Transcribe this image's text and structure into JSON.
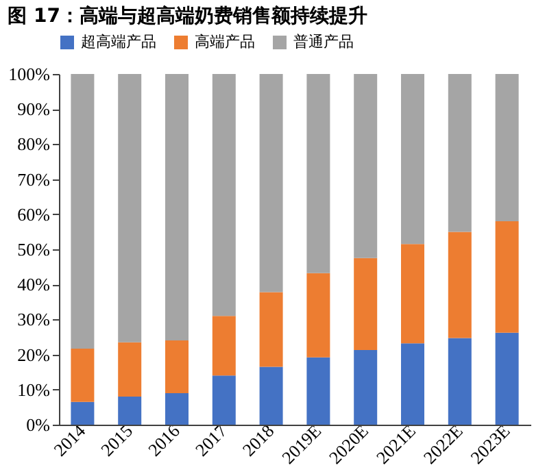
{
  "chart_data": {
    "type": "bar",
    "title": "图 17：高端与超高端奶费销售额持续提升",
    "stacked": true,
    "categories": [
      "2014",
      "2015",
      "2016",
      "2017",
      "2018",
      "2019E",
      "2020E",
      "2021E",
      "2022E",
      "2023E"
    ],
    "series": [
      {
        "name": "超高端产品",
        "color": "#4472c4",
        "values": [
          6.5,
          8,
          9,
          14,
          16.5,
          19.2,
          21.3,
          23.2,
          24.7,
          26.2
        ]
      },
      {
        "name": "高端产品",
        "color": "#ed7d31",
        "values": [
          15.2,
          15.5,
          15,
          17,
          21.3,
          24,
          26.2,
          28.3,
          30.3,
          31.8
        ]
      },
      {
        "name": "普通产品",
        "color": "#a5a5a5",
        "values": [
          78.3,
          76.5,
          76,
          69,
          62.2,
          56.8,
          52.5,
          48.5,
          45,
          42
        ]
      }
    ],
    "ylim": [
      0,
      100
    ],
    "yticks": [
      {
        "value": 0,
        "label": "0%"
      },
      {
        "value": 10,
        "label": "10%"
      },
      {
        "value": 20,
        "label": "20%"
      },
      {
        "value": 30,
        "label": "30%"
      },
      {
        "value": 40,
        "label": "40%"
      },
      {
        "value": 50,
        "label": "50%"
      },
      {
        "value": 60,
        "label": "60%"
      },
      {
        "value": 70,
        "label": "70%"
      },
      {
        "value": 80,
        "label": "80%"
      },
      {
        "value": 90,
        "label": "90%"
      },
      {
        "value": 100,
        "label": "100%"
      }
    ],
    "grid": false,
    "legend": "top"
  }
}
